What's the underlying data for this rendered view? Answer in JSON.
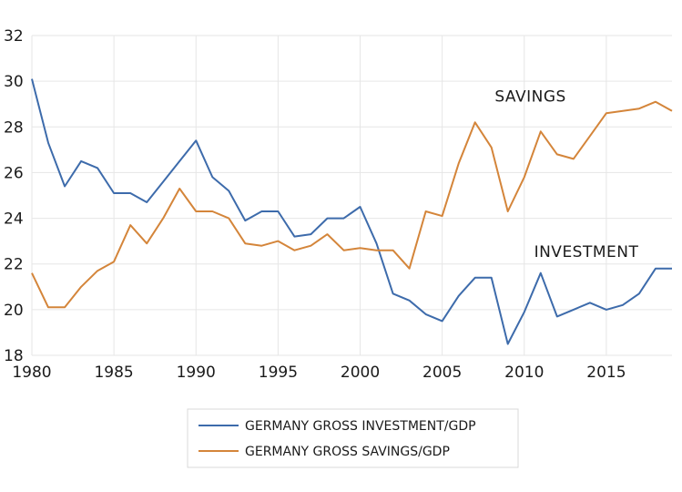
{
  "chart_data": {
    "type": "line",
    "title": "",
    "xlabel": "",
    "ylabel": "",
    "xlim": [
      1980,
      2019
    ],
    "ylim": [
      18,
      32
    ],
    "x_ticks": [
      1980,
      1985,
      1990,
      1995,
      2000,
      2005,
      2010,
      2015
    ],
    "y_ticks": [
      18,
      20,
      22,
      24,
      26,
      28,
      30,
      32
    ],
    "grid": "on",
    "legend_position": "bottom-center",
    "x": [
      1980,
      1981,
      1982,
      1983,
      1984,
      1985,
      1986,
      1987,
      1988,
      1989,
      1990,
      1991,
      1992,
      1993,
      1994,
      1995,
      1996,
      1997,
      1998,
      1999,
      2000,
      2001,
      2002,
      2003,
      2004,
      2005,
      2006,
      2007,
      2008,
      2009,
      2010,
      2011,
      2012,
      2013,
      2014,
      2015,
      2016,
      2017,
      2018,
      2019
    ],
    "series": [
      {
        "name": "GERMANY GROSS INVESTMENT/GDP",
        "color": "#3d6bab",
        "values": [
          30.1,
          27.3,
          25.4,
          26.5,
          26.2,
          25.1,
          25.1,
          24.7,
          25.6,
          26.5,
          27.4,
          25.8,
          25.2,
          23.9,
          24.3,
          24.3,
          23.2,
          23.3,
          24.0,
          24.0,
          24.5,
          22.9,
          20.7,
          20.4,
          19.8,
          19.5,
          20.6,
          21.4,
          21.4,
          18.5,
          19.9,
          21.6,
          19.7,
          20.0,
          20.3,
          20.0,
          20.2,
          20.7,
          21.8,
          21.8
        ]
      },
      {
        "name": "GERMANY GROSS SAVINGS/GDP",
        "color": "#d4853a",
        "values": [
          21.6,
          20.1,
          20.1,
          21.0,
          21.7,
          22.1,
          23.7,
          22.9,
          24.0,
          25.3,
          24.3,
          24.3,
          24.0,
          22.9,
          22.8,
          23.0,
          22.6,
          22.8,
          23.3,
          22.6,
          22.7,
          22.6,
          22.6,
          21.8,
          24.3,
          24.1,
          26.4,
          28.2,
          27.1,
          24.3,
          25.8,
          27.8,
          26.8,
          26.6,
          27.6,
          28.6,
          28.7,
          28.8,
          29.1,
          28.7
        ]
      }
    ],
    "annotations": [
      {
        "text": "SAVINGS",
        "x": 2008.2,
        "y": 29.1
      },
      {
        "text": "INVESTMENT",
        "x": 2010.6,
        "y": 22.3
      }
    ]
  }
}
